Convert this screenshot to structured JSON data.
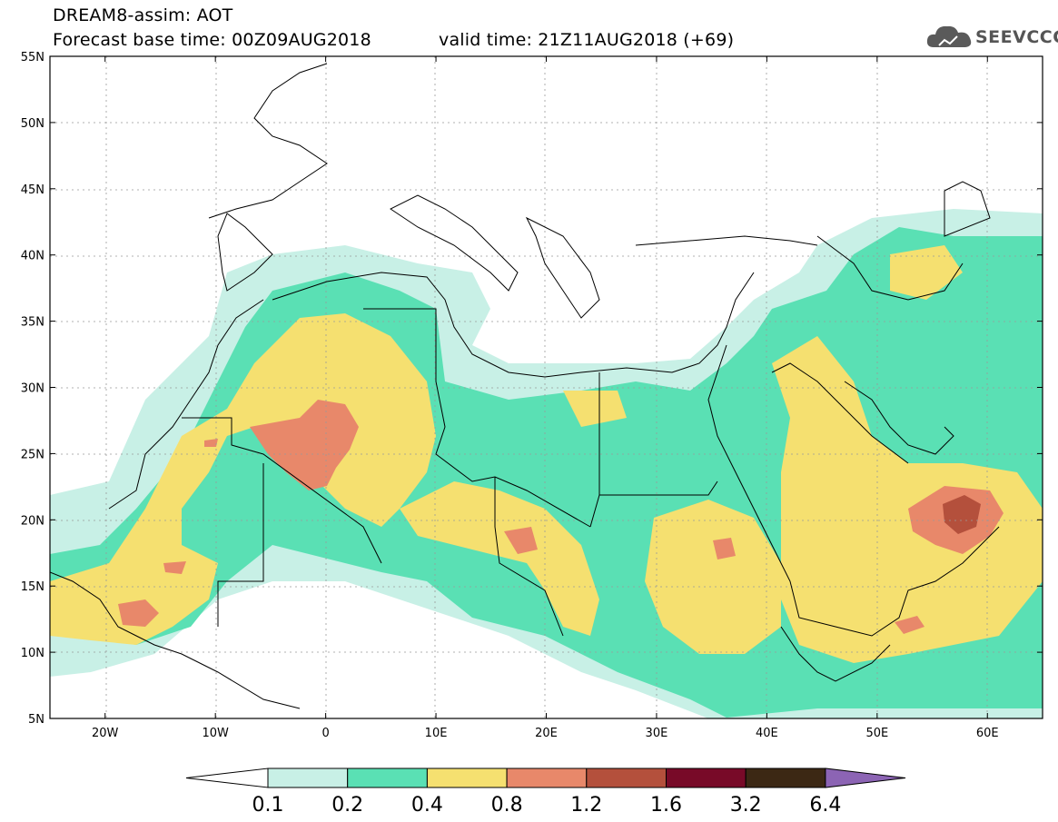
{
  "header": {
    "line1": "DREAM8-assim: AOT",
    "line2": "Forecast base time: 00Z09AUG2018",
    "line3": "valid time: 21Z11AUG2018 (+69)"
  },
  "logo": {
    "text": "SEEVCCC",
    "icon": "cloud-icon"
  },
  "map": {
    "lat_labels": [
      "55N",
      "50N",
      "45N",
      "40N",
      "35N",
      "30N",
      "25N",
      "20N",
      "15N",
      "10N",
      "5N"
    ],
    "lon_labels": [
      "20W",
      "10W",
      "0",
      "10E",
      "20E",
      "30E",
      "40E",
      "50E",
      "60E"
    ],
    "lat_range": [
      5,
      55
    ],
    "lon_range": [
      -25,
      65
    ]
  },
  "legend": {
    "labels": [
      "0.1",
      "0.2",
      "0.4",
      "0.8",
      "1.2",
      "1.6",
      "3.2",
      "6.4"
    ],
    "colors": [
      "#ffffff",
      "#c8f0e6",
      "#5ae0b4",
      "#f5e070",
      "#e8886a",
      "#b4503c",
      "#780a28",
      "#3c2814",
      "#8c64b4"
    ]
  }
}
